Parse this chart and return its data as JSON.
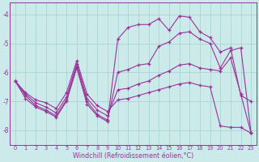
{
  "xlabel": "Windchill (Refroidissement éolien,°C)",
  "background_color": "#cceaea",
  "grid_color": "#aad4d4",
  "line_color": "#993399",
  "xlim": [
    -0.5,
    23.5
  ],
  "ylim": [
    -8.5,
    -3.6
  ],
  "yticks": [
    -8,
    -7,
    -6,
    -5,
    -4
  ],
  "xticks": [
    0,
    1,
    2,
    3,
    4,
    5,
    6,
    7,
    8,
    9,
    10,
    11,
    12,
    13,
    14,
    15,
    16,
    17,
    18,
    19,
    20,
    21,
    22,
    23
  ],
  "line1_x": [
    0,
    1,
    2,
    3,
    4,
    5,
    6,
    7,
    8,
    9,
    10,
    11,
    12,
    13,
    14,
    15,
    16,
    17,
    18,
    19,
    20,
    21,
    22,
    23
  ],
  "line1_y": [
    -6.3,
    -6.9,
    -7.2,
    -7.35,
    -7.55,
    -7.0,
    -5.85,
    -7.1,
    -7.5,
    -7.7,
    -4.85,
    -4.45,
    -4.35,
    -4.35,
    -4.15,
    -4.55,
    -4.05,
    -4.1,
    -4.6,
    -4.8,
    -5.3,
    -5.15,
    -6.8,
    -7.0
  ],
  "line2_x": [
    0,
    1,
    2,
    3,
    4,
    5,
    6,
    7,
    8,
    9,
    10,
    11,
    12,
    13,
    14,
    15,
    16,
    17,
    18,
    19,
    20,
    21,
    22,
    23
  ],
  "line2_y": [
    -6.3,
    -6.8,
    -7.15,
    -7.3,
    -7.5,
    -6.95,
    -5.8,
    -7.0,
    -7.45,
    -7.65,
    -6.0,
    -5.9,
    -5.75,
    -5.7,
    -5.1,
    -4.95,
    -4.65,
    -4.6,
    -4.85,
    -5.0,
    -5.85,
    -5.25,
    -5.15,
    -8.1
  ],
  "line3_x": [
    0,
    1,
    2,
    3,
    4,
    5,
    6,
    7,
    8,
    9,
    10,
    11,
    12,
    13,
    14,
    15,
    16,
    17,
    18,
    19,
    20,
    21,
    22,
    23
  ],
  "line3_y": [
    -6.3,
    -6.75,
    -7.05,
    -7.2,
    -7.4,
    -6.85,
    -5.7,
    -6.9,
    -7.3,
    -7.5,
    -6.6,
    -6.55,
    -6.4,
    -6.3,
    -6.1,
    -5.95,
    -5.75,
    -5.7,
    -5.85,
    -5.9,
    -5.95,
    -5.5,
    -6.75,
    -8.1
  ],
  "line4_x": [
    0,
    1,
    2,
    3,
    4,
    5,
    6,
    7,
    8,
    9,
    10,
    11,
    12,
    13,
    14,
    15,
    16,
    17,
    18,
    19,
    20,
    21,
    22,
    23
  ],
  "line4_y": [
    -6.3,
    -6.7,
    -6.95,
    -7.05,
    -7.25,
    -6.7,
    -5.6,
    -6.75,
    -7.15,
    -7.35,
    -6.95,
    -6.9,
    -6.8,
    -6.7,
    -6.6,
    -6.5,
    -6.4,
    -6.35,
    -6.45,
    -6.5,
    -7.85,
    -7.9,
    -7.9,
    -8.1
  ]
}
